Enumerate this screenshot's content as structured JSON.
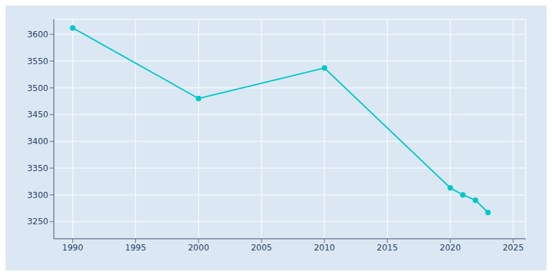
{
  "chart_data": {
    "type": "line",
    "x": [
      1990,
      2000,
      2010,
      2020,
      2021,
      2022,
      2023
    ],
    "values": [
      3612,
      3480,
      3537,
      3313,
      3300,
      3290,
      3267
    ],
    "color": "#00c8c8",
    "marker": "circle",
    "xlim": [
      1988.5,
      2026
    ],
    "ylim": [
      3218,
      3628
    ],
    "xticks": [
      1990,
      1995,
      2000,
      2005,
      2010,
      2015,
      2020,
      2025
    ],
    "yticks": [
      3250,
      3300,
      3350,
      3400,
      3450,
      3500,
      3550,
      3600
    ],
    "grid": true
  }
}
